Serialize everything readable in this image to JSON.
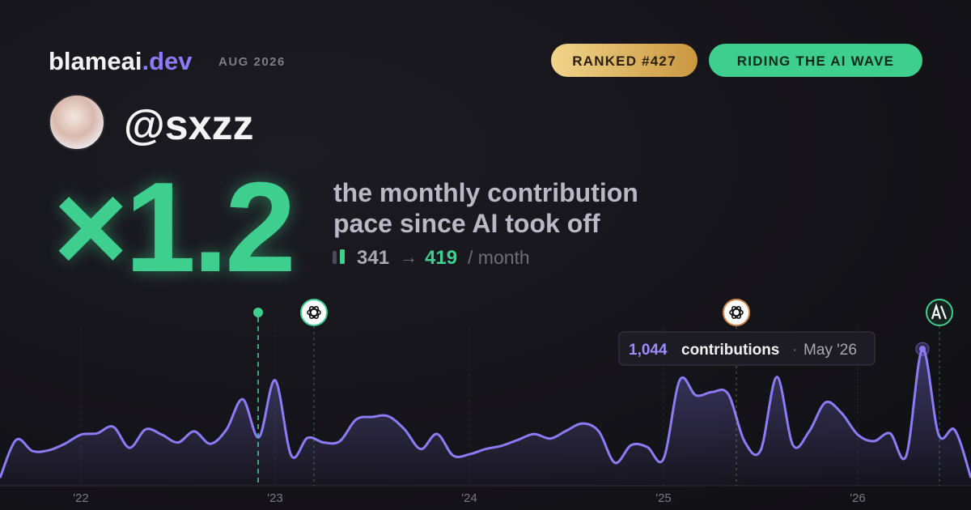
{
  "header": {
    "brand": "blameai",
    "tld": ".dev",
    "period": "AUG 2026",
    "badges": [
      "RANKED #427",
      "RIDING THE AI WAVE"
    ]
  },
  "user": {
    "handle": "@sxzz"
  },
  "headline": {
    "multiplier": "×1.2",
    "line1": "the monthly contribution",
    "line2": "pace since AI took off"
  },
  "stats": {
    "before": 341,
    "arrow": "→",
    "after": 419,
    "unit": "/ month"
  },
  "chart_data": {
    "type": "line",
    "categories": [
      null,
      null,
      null,
      null,
      null,
      "'22",
      null,
      null,
      null,
      null,
      null,
      null,
      null,
      null,
      null,
      null,
      null,
      "'23",
      null,
      null,
      null,
      null,
      null,
      null,
      null,
      null,
      null,
      null,
      null,
      "'24",
      null,
      null,
      null,
      null,
      null,
      null,
      null,
      null,
      null,
      null,
      null,
      "'25",
      null,
      null,
      null,
      null,
      null,
      null,
      null,
      null,
      null,
      null,
      null,
      "'26",
      null,
      null,
      null,
      null,
      null,
      null,
      null
    ],
    "series": [
      {
        "name": "contributions",
        "color": "#8b7cf6",
        "values": [
          60,
          350,
          265,
          270,
          320,
          390,
          400,
          450,
          290,
          430,
          390,
          330,
          415,
          320,
          430,
          660,
          370,
          805,
          230,
          365,
          330,
          340,
          505,
          525,
          530,
          430,
          280,
          395,
          230,
          240,
          280,
          305,
          350,
          395,
          360,
          420,
          475,
          415,
          175,
          310,
          295,
          205,
          805,
          690,
          715,
          700,
          340,
          270,
          830,
          310,
          415,
          635,
          555,
          390,
          340,
          400,
          230,
          1044,
          390,
          425,
          60
        ]
      }
    ],
    "ylim": [
      0,
      1236
    ],
    "tooltip": {
      "value_label": "1,044",
      "unit": "contributions",
      "separator": "·",
      "date": "May '26"
    }
  }
}
